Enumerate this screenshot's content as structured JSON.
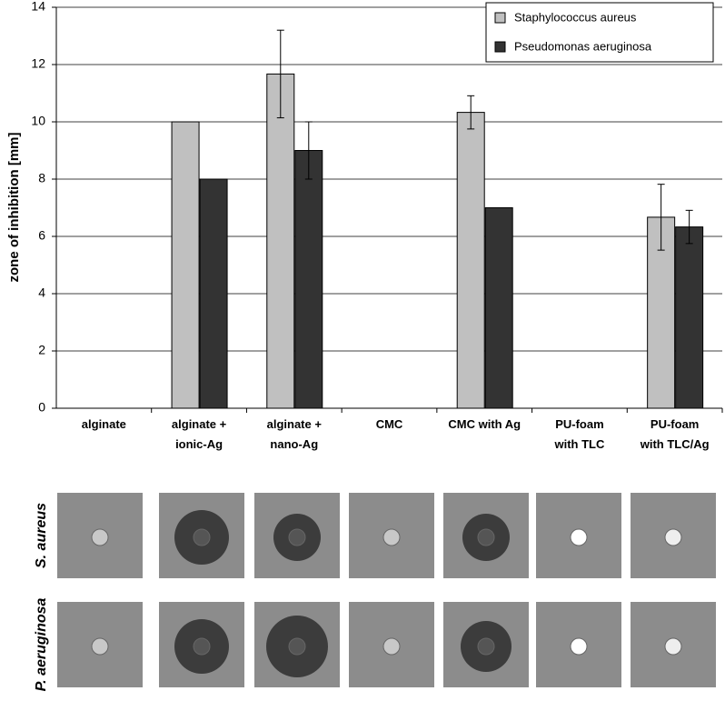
{
  "chart_data": {
    "type": "bar",
    "y_label": "zone of inhibition [mm]",
    "categories": [
      [
        "alginate"
      ],
      [
        "alginate +",
        "ionic-Ag"
      ],
      [
        "alginate +",
        "nano-Ag"
      ],
      [
        "CMC"
      ],
      [
        "CMC with Ag"
      ],
      [
        "PU-foam",
        "with TLC"
      ],
      [
        "PU-foam",
        "with TLC/Ag"
      ]
    ],
    "series": [
      {
        "name": "Staphylococcus aureus",
        "color": "#c0c0c0",
        "values": [
          0,
          10,
          11.67,
          0,
          10.33,
          0,
          6.67
        ],
        "errors": [
          null,
          null,
          1.53,
          null,
          0.58,
          null,
          1.15
        ]
      },
      {
        "name": "Pseudomonas aeruginosa",
        "color": "#333333",
        "values": [
          0,
          8,
          9,
          0,
          7,
          0,
          6.33
        ],
        "errors": [
          null,
          null,
          1,
          null,
          null,
          null,
          0.58
        ]
      }
    ],
    "ylim": [
      0,
      14
    ],
    "yticks": [
      0,
      2,
      4,
      6,
      8,
      10,
      12,
      14
    ],
    "grid": true,
    "legend": "top-right"
  },
  "photo_rows": [
    "S. aureus",
    "P. aeruginosa"
  ]
}
